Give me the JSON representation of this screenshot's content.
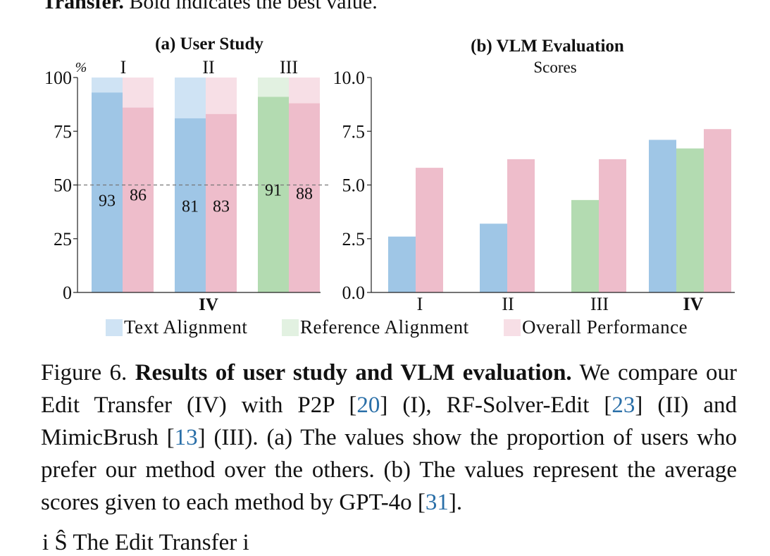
{
  "header": {
    "bold_text": "Transfer.",
    "rest_text": " Bold indicates the best value."
  },
  "colors": {
    "text_alignment": "#9fc6e6",
    "reference_alignment": "#b3dbb1",
    "overall_performance": "#eebdcb",
    "text_alignment_light": "#cfe3f4",
    "reference_alignment_light": "#e2f1e1",
    "overall_performance_light": "#f7dfe6"
  },
  "chart_data": [
    {
      "type": "bar",
      "title": "(a) User Study",
      "unit_label": "%",
      "categories": [
        "I",
        "II",
        "III"
      ],
      "x_axis_label": "IV",
      "ylim": [
        0,
        100
      ],
      "yticks": [
        "0",
        "25",
        "50",
        "75",
        "100"
      ],
      "reference_line": 50,
      "groups": [
        {
          "category": "I",
          "bars": [
            {
              "series": "Text Alignment",
              "value": 93,
              "label": "93"
            },
            {
              "series": "Overall Performance",
              "value": 86,
              "label": "86"
            }
          ]
        },
        {
          "category": "II",
          "bars": [
            {
              "series": "Text Alignment",
              "value": 81,
              "label": "81"
            },
            {
              "series": "Overall Performance",
              "value": 83,
              "label": "83"
            }
          ]
        },
        {
          "category": "III",
          "bars": [
            {
              "series": "Reference Alignment",
              "value": 91,
              "label": "91"
            },
            {
              "series": "Overall Performance",
              "value": 88,
              "label": "88"
            }
          ]
        }
      ]
    },
    {
      "type": "bar",
      "title": "(b) VLM Evaluation",
      "subtitle": "Scores",
      "categories": [
        "I",
        "II",
        "III",
        "IV"
      ],
      "ylim": [
        0,
        10
      ],
      "yticks": [
        "0.0",
        "2.5",
        "5.0",
        "7.5",
        "10.0"
      ],
      "groups": [
        {
          "category": "I",
          "bars": [
            {
              "series": "Text Alignment",
              "value": 2.6
            },
            {
              "series": "Overall Performance",
              "value": 5.8
            }
          ]
        },
        {
          "category": "II",
          "bars": [
            {
              "series": "Text Alignment",
              "value": 3.2
            },
            {
              "series": "Overall Performance",
              "value": 6.2
            }
          ]
        },
        {
          "category": "III",
          "bars": [
            {
              "series": "Reference Alignment",
              "value": 4.3
            },
            {
              "series": "Overall Performance",
              "value": 6.2
            }
          ]
        },
        {
          "category": "IV",
          "bars": [
            {
              "series": "Text Alignment",
              "value": 7.1
            },
            {
              "series": "Reference Alignment",
              "value": 6.7
            },
            {
              "series": "Overall Performance",
              "value": 7.6
            }
          ]
        }
      ]
    }
  ],
  "legend": [
    {
      "label": "Text Alignment",
      "color_key": "text_alignment_light"
    },
    {
      "label": "Reference Alignment",
      "color_key": "reference_alignment_light"
    },
    {
      "label": "Overall Performance",
      "color_key": "overall_performance_light"
    }
  ],
  "caption": {
    "fig_label": "Figure 6. ",
    "bold_title": "Results of user study and VLM evaluation.",
    "t1": " We compare our Edit Transfer (IV) with P2P [",
    "c1": "20",
    "t2": "] (I), RF-Solver-Edit [",
    "c2": "23",
    "t3": "] (II) and MimicBrush [",
    "c3": "13",
    "t4": "] (III). (a) The values show the proportion of users who prefer our method over the others. (b) The values represent the average scores given to each method by GPT-4o [",
    "c4": "31",
    "t5": "]."
  },
  "bottom_fragment": "i    Ŝ    The Edit Transfer  i"
}
